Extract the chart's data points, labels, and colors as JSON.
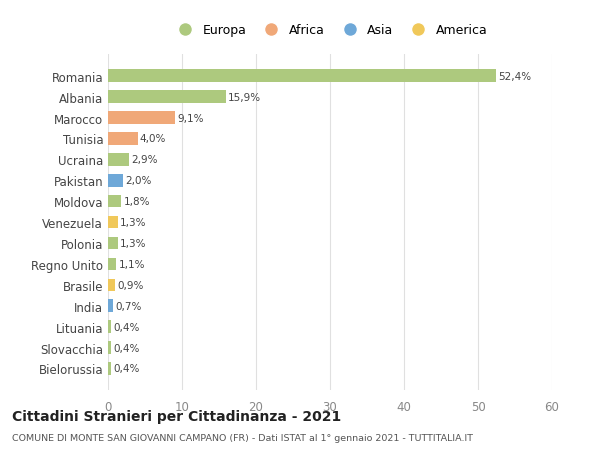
{
  "countries": [
    "Romania",
    "Albania",
    "Marocco",
    "Tunisia",
    "Ucraina",
    "Pakistan",
    "Moldova",
    "Venezuela",
    "Polonia",
    "Regno Unito",
    "Brasile",
    "India",
    "Lituania",
    "Slovacchia",
    "Bielorussia"
  ],
  "values": [
    52.4,
    15.9,
    9.1,
    4.0,
    2.9,
    2.0,
    1.8,
    1.3,
    1.3,
    1.1,
    0.9,
    0.7,
    0.4,
    0.4,
    0.4
  ],
  "labels": [
    "52,4%",
    "15,9%",
    "9,1%",
    "4,0%",
    "2,9%",
    "2,0%",
    "1,8%",
    "1,3%",
    "1,3%",
    "1,1%",
    "0,9%",
    "0,7%",
    "0,4%",
    "0,4%",
    "0,4%"
  ],
  "continents": [
    "Europa",
    "Europa",
    "Africa",
    "Africa",
    "Europa",
    "Asia",
    "Europa",
    "America",
    "Europa",
    "Europa",
    "America",
    "Asia",
    "Europa",
    "Europa",
    "Europa"
  ],
  "continent_colors": {
    "Europa": "#adc97e",
    "Africa": "#f0a878",
    "Asia": "#6ea8d8",
    "America": "#f0c85a"
  },
  "legend_order": [
    "Europa",
    "Africa",
    "Asia",
    "America"
  ],
  "title": "Cittadini Stranieri per Cittadinanza - 2021",
  "subtitle": "COMUNE DI MONTE SAN GIOVANNI CAMPANO (FR) - Dati ISTAT al 1° gennaio 2021 - TUTTITALIA.IT",
  "xlim": [
    0,
    60
  ],
  "xticks": [
    0,
    10,
    20,
    30,
    40,
    50,
    60
  ],
  "background_color": "#ffffff",
  "grid_color": "#e0e0e0",
  "bar_height": 0.6
}
